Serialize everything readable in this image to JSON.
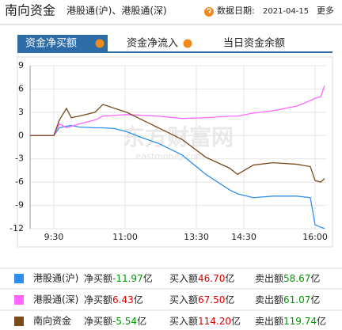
{
  "header": {
    "title": "南向资金",
    "subtitle": "港股通(沪)、港股通(深)",
    "date_label": "数据日期:",
    "date": "2021-04-15",
    "more": "更多"
  },
  "tabs": [
    "资金净买额",
    "资金净流入",
    "当日资金余额"
  ],
  "watermark": {
    "title": "东方财富网",
    "url": "eastmoney.com"
  },
  "chart_data": {
    "type": "line",
    "x": [
      0,
      30,
      37,
      46,
      52,
      62,
      82,
      92,
      107,
      122,
      142,
      162,
      192,
      222,
      252,
      262,
      282,
      307,
      337,
      354,
      360,
      367,
      372
    ],
    "xlim": [
      0,
      374
    ],
    "xticks": [
      {
        "value": 30,
        "label": "9:30"
      },
      {
        "value": 120,
        "label": "11:00"
      },
      {
        "value": 210,
        "label": "13:30"
      },
      {
        "value": 270,
        "label": "14:30"
      },
      {
        "value": 360,
        "label": "16:00"
      }
    ],
    "ylim": [
      -12,
      9
    ],
    "yticks": [
      9,
      6,
      3,
      0,
      -3,
      -6,
      -9,
      -12
    ],
    "grid": true,
    "series": [
      {
        "name": "港股通(沪)",
        "color": "#2f8ff0",
        "values": [
          0,
          0,
          1,
          1.2,
          1.3,
          1.1,
          1,
          1,
          0.9,
          0.5,
          -0.3,
          -1,
          -2.5,
          -5,
          -7,
          -7.5,
          -8,
          -7.8,
          -7.8,
          -8,
          -11.5,
          -11.8,
          -11.97
        ]
      },
      {
        "name": "港股通(深)",
        "color": "#ff66ff",
        "values": [
          0,
          0,
          1.5,
          1,
          1.2,
          1.5,
          2,
          2.5,
          2.6,
          2.7,
          2.6,
          2.5,
          2.2,
          2.3,
          2.5,
          2.5,
          2.9,
          3.2,
          3.8,
          4.5,
          4.8,
          5,
          6.43
        ]
      },
      {
        "name": "南向资金",
        "color": "#7a4a1a",
        "values": [
          0,
          0,
          2,
          3.5,
          2.3,
          2.5,
          3,
          4,
          3.5,
          3,
          2,
          1,
          -0.5,
          -2.8,
          -4.2,
          -5,
          -3.8,
          -3.5,
          -3.7,
          -4,
          -5.8,
          -6,
          -5.54
        ]
      }
    ]
  },
  "legend": {
    "net_label": "净买额",
    "buy_label": "买入额",
    "sell_label": "卖出额",
    "unit": "亿",
    "rows": [
      {
        "net": "-11.97",
        "net_color": "#009900",
        "buy": "46.70",
        "sell": "58.67"
      },
      {
        "net": "6.43",
        "net_color": "#dd0000",
        "buy": "67.50",
        "sell": "61.07"
      },
      {
        "net": "-5.54",
        "net_color": "#009900",
        "buy": "114.20",
        "sell": "119.74"
      }
    ],
    "buy_color": "#dd0000",
    "sell_color": "#009900"
  }
}
